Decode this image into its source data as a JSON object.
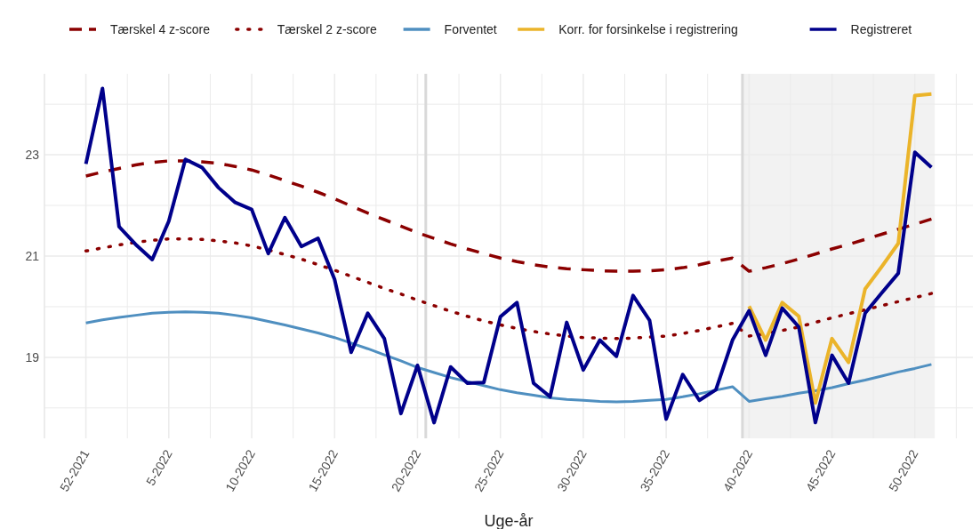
{
  "chart_data": {
    "type": "line",
    "xlabel": "Uge-år",
    "legend": "top",
    "grid": true,
    "categories": [
      "52-2021",
      null,
      null,
      null,
      null,
      "5-2022",
      null,
      null,
      null,
      null,
      "10-2022",
      null,
      null,
      null,
      null,
      "15-2022",
      null,
      null,
      null,
      null,
      "20-2022",
      null,
      null,
      null,
      null,
      "25-2022",
      null,
      null,
      null,
      null,
      "30-2022",
      null,
      null,
      null,
      null,
      "35-2022",
      null,
      null,
      null,
      null,
      "40-2022",
      null,
      null,
      null,
      null,
      "45-2022",
      null,
      null,
      null,
      null,
      "50-2022",
      null
    ],
    "ylim": [
      17.4,
      24.6
    ],
    "yticks": [
      {
        "value": 18,
        "label": null
      },
      19,
      {
        "value": 20,
        "label": null
      },
      21,
      {
        "value": 22,
        "label": null
      },
      23,
      {
        "value": 24,
        "label": null
      }
    ],
    "series": [
      {
        "name": "Tærskel 4 z-score",
        "color": "#8b0000",
        "line_style": "dashed",
        "values": [
          22.58,
          22.66,
          22.73,
          22.8,
          22.85,
          22.88,
          22.88,
          22.86,
          22.83,
          22.77,
          22.7,
          22.6,
          22.49,
          22.38,
          22.26,
          22.13,
          21.99,
          21.85,
          21.72,
          21.59,
          21.46,
          21.35,
          21.24,
          21.14,
          21.05,
          20.96,
          20.89,
          20.83,
          20.78,
          20.75,
          20.73,
          20.71,
          20.7,
          20.7,
          20.71,
          20.73,
          20.77,
          20.83,
          20.9,
          20.96,
          20.7,
          20.77,
          20.85,
          20.94,
          21.04,
          21.14,
          21.23,
          21.33,
          21.43,
          21.53,
          21.63,
          21.73
        ]
      },
      {
        "name": "Tærskel 2 z-score",
        "color": "#8b0000",
        "line_style": "dotted",
        "values": [
          21.1,
          21.16,
          21.22,
          21.27,
          21.31,
          21.34,
          21.34,
          21.33,
          21.3,
          21.26,
          21.2,
          21.12,
          21.03,
          20.94,
          20.83,
          20.72,
          20.6,
          20.48,
          20.36,
          20.25,
          20.13,
          20.02,
          19.91,
          19.81,
          19.72,
          19.64,
          19.57,
          19.51,
          19.46,
          19.42,
          19.39,
          19.38,
          19.37,
          19.38,
          19.4,
          19.42,
          19.47,
          19.53,
          19.6,
          19.67,
          19.42,
          19.47,
          19.53,
          19.6,
          19.69,
          19.78,
          19.86,
          19.94,
          20.02,
          20.1,
          20.18,
          20.26
        ]
      },
      {
        "name": "Forventet",
        "color": "#4f8fc0",
        "line_style": "solid",
        "values": [
          19.68,
          19.74,
          19.79,
          19.83,
          19.87,
          19.89,
          19.9,
          19.89,
          19.87,
          19.83,
          19.78,
          19.71,
          19.64,
          19.56,
          19.48,
          19.39,
          19.28,
          19.17,
          19.05,
          18.93,
          18.8,
          18.7,
          18.6,
          18.52,
          18.44,
          18.36,
          18.3,
          18.25,
          18.2,
          18.17,
          18.15,
          18.13,
          18.12,
          18.13,
          18.15,
          18.17,
          18.22,
          18.28,
          18.35,
          18.42,
          18.13,
          18.18,
          18.23,
          18.29,
          18.34,
          18.4,
          18.48,
          18.55,
          18.63,
          18.71,
          18.78,
          18.86
        ]
      },
      {
        "name": "Korr. for forsinkelse i registrering",
        "color": "#ebb42a",
        "line_style": "solid",
        "values": [
          null,
          null,
          null,
          null,
          null,
          null,
          null,
          null,
          null,
          null,
          null,
          null,
          null,
          null,
          null,
          null,
          null,
          null,
          null,
          null,
          null,
          null,
          null,
          null,
          null,
          null,
          null,
          null,
          null,
          null,
          null,
          null,
          null,
          null,
          null,
          null,
          null,
          null,
          null,
          null,
          20.01,
          19.34,
          20.08,
          19.81,
          18.1,
          19.37,
          18.9,
          20.35,
          20.79,
          21.25,
          24.17,
          24.2
        ]
      },
      {
        "name": "Registreret",
        "color": "#00008b",
        "line_style": "solid",
        "values": [
          22.82,
          24.31,
          21.58,
          21.23,
          20.93,
          21.69,
          22.91,
          22.75,
          22.35,
          22.06,
          21.92,
          21.05,
          21.76,
          21.19,
          21.35,
          20.54,
          19.1,
          19.87,
          19.37,
          17.89,
          18.84,
          17.71,
          18.81,
          18.49,
          18.5,
          19.8,
          20.08,
          18.49,
          18.22,
          19.69,
          18.75,
          19.34,
          19.02,
          20.22,
          19.73,
          17.78,
          18.66,
          18.15,
          18.36,
          19.34,
          19.92,
          19.04,
          19.97,
          19.6,
          17.71,
          19.04,
          18.49,
          19.87,
          20.27,
          20.66,
          23.05,
          22.75
        ]
      }
    ]
  }
}
